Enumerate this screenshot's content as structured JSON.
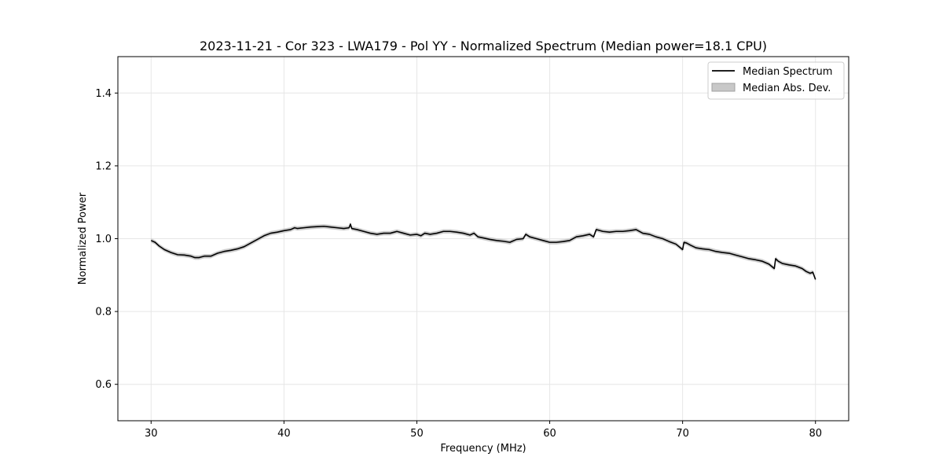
{
  "chart_data": {
    "type": "line",
    "title": "2023-11-21 - Cor 323 - LWA179 - Pol YY - Normalized Spectrum (Median power=18.1 CPU)",
    "xlabel": "Frequency (MHz)",
    "ylabel": "Normalized Power",
    "xlim": [
      27.5,
      82.5
    ],
    "ylim": [
      0.5,
      1.5
    ],
    "xticks": [
      30,
      40,
      50,
      60,
      70,
      80
    ],
    "yticks": [
      0.6,
      0.8,
      1.0,
      1.2,
      1.4
    ],
    "xtick_labels": [
      "30",
      "40",
      "50",
      "60",
      "70",
      "80"
    ],
    "ytick_labels": [
      "0.6",
      "0.8",
      "1.0",
      "1.2",
      "1.4"
    ],
    "grid": true,
    "legend_position": "top-right",
    "legend": {
      "line_label": "Median Spectrum",
      "band_label": "Median Abs. Dev."
    },
    "colors": {
      "line": "#000000",
      "band": "#c8c8c8",
      "grid": "#e6e6e6"
    },
    "series": [
      {
        "name": "Median Spectrum",
        "x": [
          30,
          30.3,
          30.6,
          31,
          31.5,
          32,
          32.5,
          33,
          33.3,
          33.6,
          34,
          34.5,
          35,
          35.5,
          36,
          36.5,
          37,
          37.5,
          38,
          38.5,
          39,
          39.5,
          40,
          40.5,
          40.8,
          41,
          41.5,
          42,
          42.5,
          43,
          43.5,
          44,
          44.5,
          44.9,
          45,
          45.1,
          45.5,
          46,
          46.5,
          47,
          47.5,
          48,
          48.3,
          48.5,
          49,
          49.5,
          50,
          50.3,
          50.6,
          51,
          51.5,
          52,
          52.5,
          53,
          53.5,
          54,
          54.3,
          54.6,
          55,
          55.5,
          56,
          56.5,
          57,
          57.5,
          58,
          58.2,
          58.5,
          59,
          59.5,
          60,
          60.5,
          61,
          61.5,
          62,
          62.5,
          63,
          63.3,
          63.5,
          64,
          64.5,
          65,
          65.5,
          66,
          66.5,
          67,
          67.5,
          68,
          68.5,
          69,
          69.5,
          70,
          70.1,
          70.3,
          70.6,
          71,
          71.5,
          72,
          72.5,
          73,
          73.5,
          74,
          74.5,
          75,
          75.5,
          76,
          76.5,
          76.9,
          77,
          77.2,
          77.5,
          78,
          78.5,
          79,
          79.3,
          79.6,
          79.8,
          80
        ],
        "y": [
          0.995,
          0.99,
          0.98,
          0.97,
          0.962,
          0.956,
          0.955,
          0.952,
          0.948,
          0.948,
          0.952,
          0.952,
          0.96,
          0.965,
          0.968,
          0.972,
          0.978,
          0.988,
          0.998,
          1.008,
          1.015,
          1.018,
          1.022,
          1.025,
          1.03,
          1.028,
          1.03,
          1.032,
          1.033,
          1.034,
          1.032,
          1.03,
          1.028,
          1.03,
          1.04,
          1.028,
          1.025,
          1.02,
          1.015,
          1.012,
          1.015,
          1.015,
          1.018,
          1.02,
          1.015,
          1.01,
          1.012,
          1.008,
          1.015,
          1.012,
          1.015,
          1.02,
          1.02,
          1.018,
          1.015,
          1.01,
          1.015,
          1.005,
          1.002,
          0.998,
          0.995,
          0.993,
          0.99,
          0.998,
          1.0,
          1.012,
          1.005,
          1.0,
          0.995,
          0.99,
          0.99,
          0.992,
          0.995,
          1.005,
          1.008,
          1.012,
          1.005,
          1.025,
          1.02,
          1.018,
          1.02,
          1.02,
          1.022,
          1.025,
          1.015,
          1.012,
          1.005,
          1.0,
          0.992,
          0.985,
          0.97,
          0.99,
          0.988,
          0.982,
          0.975,
          0.972,
          0.97,
          0.965,
          0.962,
          0.96,
          0.955,
          0.95,
          0.945,
          0.942,
          0.938,
          0.93,
          0.918,
          0.945,
          0.938,
          0.932,
          0.928,
          0.925,
          0.918,
          0.91,
          0.905,
          0.908,
          0.888
        ]
      }
    ],
    "band_halfwidth": 0.006
  }
}
